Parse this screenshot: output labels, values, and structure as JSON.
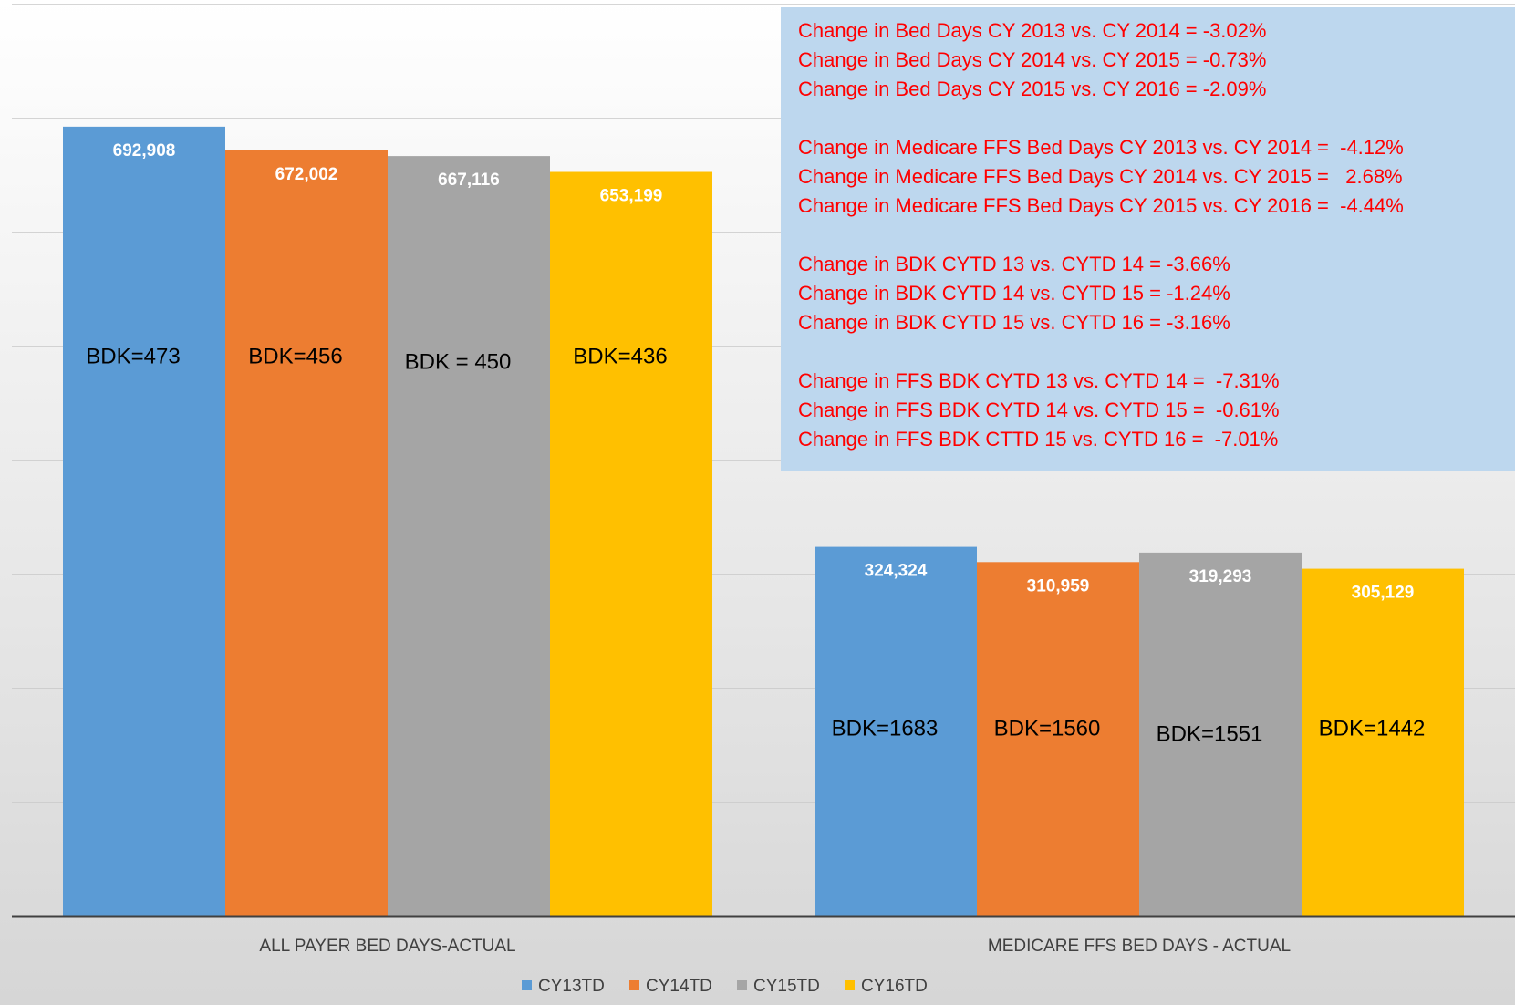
{
  "chart_data": {
    "type": "bar",
    "categories": [
      "ALL PAYER BED DAYS-ACTUAL",
      "MEDICARE FFS BED DAYS - ACTUAL"
    ],
    "series": [
      {
        "name": "CY13TD",
        "color": "#5b9bd5",
        "values": [
          692908,
          324324
        ],
        "value_labels": [
          "692,908",
          "324,324"
        ],
        "annotations": [
          "BDK=473",
          "BDK=1683"
        ]
      },
      {
        "name": "CY14TD",
        "color": "#ed7d31",
        "values": [
          672002,
          310959
        ],
        "value_labels": [
          "672,002",
          "310,959"
        ],
        "annotations": [
          "BDK=456",
          "BDK=1560"
        ]
      },
      {
        "name": "CY15TD",
        "color": "#a5a5a5",
        "values": [
          667116,
          319293
        ],
        "value_labels": [
          "667,116",
          "319,293"
        ],
        "annotations": [
          "BDK = 450",
          "BDK=1551"
        ]
      },
      {
        "name": "CY16TD",
        "color": "#ffc000",
        "values": [
          653199,
          305129
        ],
        "value_labels": [
          "653,199",
          "305,129"
        ],
        "annotations": [
          "BDK=436",
          "BDK=1442"
        ]
      }
    ],
    "ylim": [
      0,
      800000
    ],
    "yticks": [
      0,
      100000,
      200000,
      300000,
      400000,
      500000,
      600000,
      700000,
      800000
    ],
    "grid": true,
    "legend": "bottom",
    "notes": [
      [
        "Change in Bed Days CY 2013 vs. CY 2014 = -3.02%",
        "Change in Bed Days CY 2014 vs. CY 2015 = -0.73%",
        "Change in Bed Days CY 2015 vs. CY 2016 = -2.09%"
      ],
      [
        "Change in Medicare FFS Bed Days CY 2013 vs. CY 2014 =  -4.12%",
        "Change in Medicare FFS Bed Days CY 2014 vs. CY 2015 =   2.68%",
        "Change in Medicare FFS Bed Days CY 2015 vs. CY 2016 =  -4.44%"
      ],
      [
        "Change in BDK CYTD 13 vs. CYTD 14 = -3.66%",
        "Change in BDK CYTD 14 vs. CYTD 15 = -1.24%",
        "Change in BDK CYTD 15 vs. CYTD 16 = -3.16%"
      ],
      [
        "Change in FFS BDK CYTD 13 vs. CYTD 14 =  -7.31%",
        "Change in FFS BDK CYTD 14 vs. CYTD 15 =  -0.61%",
        "Change in FFS BDK CTTD 15 vs. CYTD 16 =  -7.01%"
      ]
    ]
  }
}
